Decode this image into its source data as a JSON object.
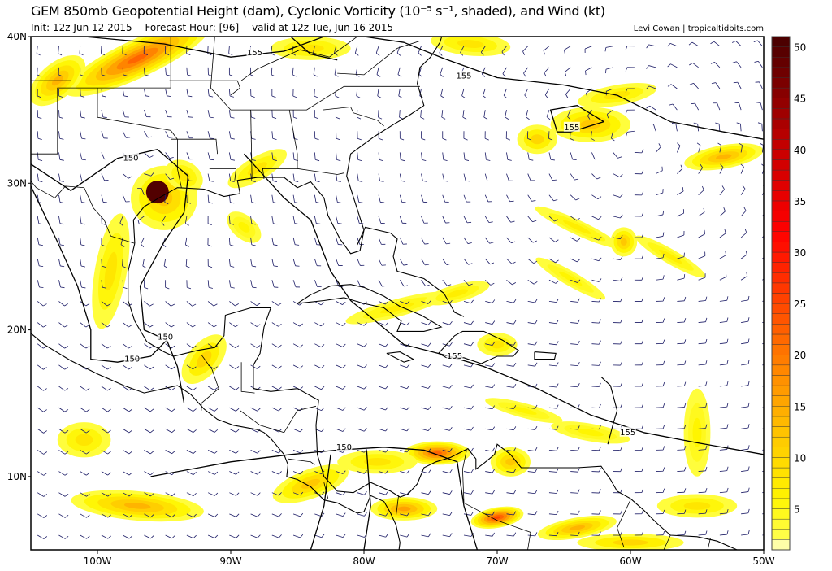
{
  "header": {
    "title": "GEM 850mb Geopotential Height (dam), Cyclonic Vorticity (10⁻⁵ s⁻¹, shaded), and Wind (kt)",
    "init": "Init: 12z Jun 12 2015",
    "forecast_hour": "Forecast Hour: [96]",
    "valid": "valid at 12z Tue, Jun 16 2015",
    "credit": "Levi Cowan | tropicaltidbits.com"
  },
  "map": {
    "extent": {
      "lon": [
        -105,
        -50
      ],
      "lat": [
        5,
        40
      ]
    },
    "lat_ticks": [
      {
        "lat": 40,
        "label": "40N"
      },
      {
        "lat": 30,
        "label": "30N"
      },
      {
        "lat": 20,
        "label": "20N"
      },
      {
        "lat": 10,
        "label": "10N"
      }
    ],
    "lon_ticks": [
      {
        "lon": -100,
        "label": "100W"
      },
      {
        "lon": -90,
        "label": "90W"
      },
      {
        "lon": -80,
        "label": "80W"
      },
      {
        "lon": -70,
        "label": "70W"
      },
      {
        "lon": -60,
        "label": "60W"
      },
      {
        "lon": -50,
        "label": "50W"
      }
    ],
    "contour_labels": [
      {
        "text": "155",
        "lon": -88.2,
        "lat": 38.9
      },
      {
        "text": "155",
        "lon": -72.5,
        "lat": 37.3
      },
      {
        "text": "155",
        "lon": -64.4,
        "lat": 33.8
      },
      {
        "text": "150",
        "lon": -97.5,
        "lat": 31.7
      },
      {
        "text": "150",
        "lon": -94.9,
        "lat": 19.5
      },
      {
        "text": "150",
        "lon": -97.4,
        "lat": 18.0
      },
      {
        "text": "155",
        "lon": -73.2,
        "lat": 18.2
      },
      {
        "text": "155",
        "lon": -60.2,
        "lat": 13.0
      },
      {
        "text": "150",
        "lon": -81.5,
        "lat": 12.0
      }
    ],
    "colors": {
      "coast": "#000000",
      "wind_barbs": "#1c1c66",
      "contours": "#000000"
    },
    "vortex_center": {
      "lon": -95.5,
      "lat": 29.4,
      "value": 50
    }
  },
  "colorbar": {
    "min": 1,
    "max": 51,
    "step": 1,
    "ticks": [
      5,
      10,
      15,
      20,
      25,
      30,
      35,
      40,
      45,
      50
    ]
  },
  "vorticity_features": [
    [
      -95.5,
      29.4,
      1.0,
      1.0,
      50,
      0
    ],
    [
      -95,
      29,
      2.5,
      2.2,
      12,
      0
    ],
    [
      -93.5,
      30.5,
      1.5,
      1.0,
      8,
      30
    ],
    [
      -97,
      38.5,
      6,
      1.3,
      22,
      -25
    ],
    [
      -103,
      37,
      2.5,
      1.2,
      14,
      -40
    ],
    [
      -84,
      39.2,
      3,
      0.8,
      8,
      0
    ],
    [
      -72,
      39.5,
      3,
      0.8,
      8,
      5
    ],
    [
      -63,
      34,
      3,
      1.2,
      12,
      0
    ],
    [
      -53,
      31.8,
      3,
      0.8,
      14,
      -10
    ],
    [
      -61,
      36,
      3,
      0.7,
      8,
      -10
    ],
    [
      -99,
      24,
      1.2,
      4,
      8,
      10
    ],
    [
      -88,
      31,
      2.5,
      0.8,
      8,
      -30
    ],
    [
      -92,
      18,
      1.2,
      2,
      10,
      40
    ],
    [
      -77.5,
      21.5,
      4,
      0.6,
      7,
      -15
    ],
    [
      -73,
      22.5,
      2.5,
      0.6,
      7,
      -15
    ],
    [
      -70,
      19,
      1.5,
      0.8,
      8,
      0
    ],
    [
      -74.5,
      11.6,
      2.5,
      0.8,
      22,
      0
    ],
    [
      -79,
      11,
      3,
      0.8,
      8,
      0
    ],
    [
      -69,
      11,
      1.5,
      1,
      12,
      0
    ],
    [
      -97,
      8,
      5,
      1,
      14,
      5
    ],
    [
      -84,
      9.5,
      3,
      1,
      12,
      -20
    ],
    [
      -77,
      7.8,
      2.5,
      0.8,
      16,
      0
    ],
    [
      -70,
      7.2,
      2,
      0.7,
      25,
      -10
    ],
    [
      -64,
      6.5,
      3,
      0.7,
      14,
      -10
    ],
    [
      -60,
      5.5,
      4,
      0.6,
      10,
      0
    ],
    [
      -64,
      27,
      3.5,
      0.5,
      7,
      25
    ],
    [
      -57,
      25,
      3,
      0.5,
      7,
      30
    ],
    [
      -64.5,
      23.5,
      3,
      0.5,
      6,
      30
    ],
    [
      -60.5,
      26,
      1,
      1,
      12,
      0
    ],
    [
      -89,
      27,
      1.5,
      0.8,
      6,
      40
    ],
    [
      -68,
      14.5,
      3,
      0.5,
      6,
      15
    ],
    [
      -63,
      13,
      3,
      0.6,
      6,
      10
    ],
    [
      -55,
      13,
      1,
      3,
      6,
      0
    ],
    [
      -67,
      33,
      1.5,
      1,
      10,
      0
    ],
    [
      -101,
      12.5,
      2,
      1.2,
      8,
      0
    ],
    [
      -55,
      8,
      3,
      0.8,
      8,
      0
    ]
  ]
}
